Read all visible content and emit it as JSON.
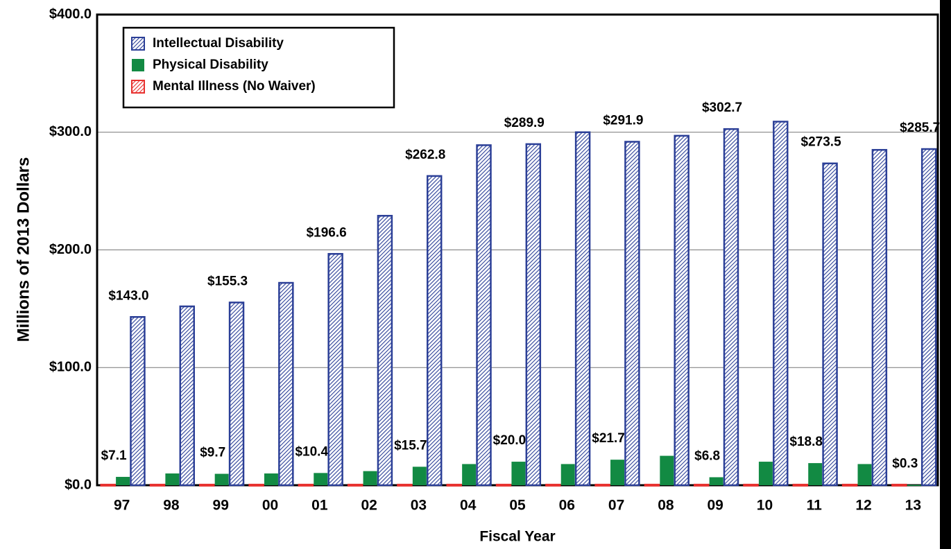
{
  "chart_data": {
    "type": "bar",
    "x_label": "Fiscal Year",
    "y_label": "Millions of 2013 Dollars",
    "categories": [
      "97",
      "98",
      "99",
      "00",
      "01",
      "02",
      "03",
      "04",
      "05",
      "06",
      "07",
      "08",
      "09",
      "10",
      "11",
      "12",
      "13"
    ],
    "ylim": [
      0,
      400
    ],
    "yticks": [
      {
        "value": 0,
        "label": "$0.0"
      },
      {
        "value": 100,
        "label": "$100.0"
      },
      {
        "value": 200,
        "label": "$200.0"
      },
      {
        "value": 300,
        "label": "$300.0"
      },
      {
        "value": 400,
        "label": "$400.0"
      }
    ],
    "grid": true,
    "legend": "upper left",
    "series": [
      {
        "name": "Mental Illness (No Waiver)",
        "color": "#e8312f",
        "hatch": true,
        "values": [
          0.5,
          0.5,
          0.5,
          0.5,
          0.5,
          0.5,
          0.5,
          0.5,
          0.5,
          0.5,
          0.5,
          0.5,
          0.5,
          0.5,
          0.5,
          0.5,
          0.5
        ]
      },
      {
        "name": "Physical Disability",
        "color": "#128a43",
        "hatch": false,
        "values": [
          7.1,
          10,
          9.7,
          10,
          10.4,
          12,
          15.7,
          18,
          20.0,
          18,
          21.7,
          25,
          6.8,
          20,
          18.8,
          18,
          0.3
        ],
        "value_labels": [
          "$7.1",
          null,
          "$9.7",
          null,
          "$10.4",
          null,
          "$15.7",
          null,
          "$20.0",
          null,
          "$21.7",
          null,
          "$6.8",
          null,
          "$18.8",
          null,
          "$0.3"
        ]
      },
      {
        "name": "Intellectual Disability",
        "color": "#2b3f97",
        "hatch": true,
        "values": [
          143.0,
          152,
          155.3,
          172,
          196.6,
          229,
          262.8,
          289,
          289.9,
          300,
          291.9,
          297,
          302.7,
          309,
          273.5,
          285,
          285.7
        ],
        "value_labels": [
          "$143.0",
          null,
          "$155.3",
          null,
          "$196.6",
          null,
          "$262.8",
          null,
          "$289.9",
          null,
          "$291.9",
          null,
          "$302.7",
          null,
          "$273.5",
          null,
          "$285.7"
        ]
      }
    ]
  }
}
